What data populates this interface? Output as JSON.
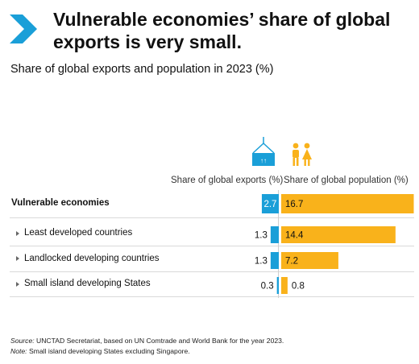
{
  "title": "Vulnerable economies’ share of global exports is very small.",
  "subtitle": "Share of global exports and population in 2023 (%)",
  "colors": {
    "exports": "#1a9fd8",
    "population": "#f9b21b",
    "accent": "#1a9fd8"
  },
  "icons": {
    "exports": "container-crane-icon",
    "population": "people-icon",
    "arrow": "chevron-right-icon"
  },
  "chart_data": {
    "type": "bar",
    "title": "Vulnerable economies’ share of global exports is very small.",
    "subtitle": "Share of global exports and population in 2023 (%)",
    "categories": [
      "Vulnerable economies",
      "Least developed countries",
      "Landlocked developing countries",
      "Small island developing States"
    ],
    "series": [
      {
        "name": "Share of global exports (%)",
        "values": [
          2.7,
          1.3,
          1.3,
          0.3
        ]
      },
      {
        "name": "Share of global population (%)",
        "values": [
          16.7,
          14.4,
          7.2,
          0.8
        ]
      }
    ],
    "labels": [
      "2.7",
      "1.3",
      "1.3",
      "0.3",
      "16.7",
      "14.4",
      "7.2",
      "0.8"
    ]
  },
  "footer": {
    "source_label": "Source:",
    "source_text": "UNCTAD Secretariat, based on UN Comtrade and World Bank for the year 2023.",
    "note_label": "Note:",
    "note_text": "Small island developing States excluding Singapore."
  }
}
